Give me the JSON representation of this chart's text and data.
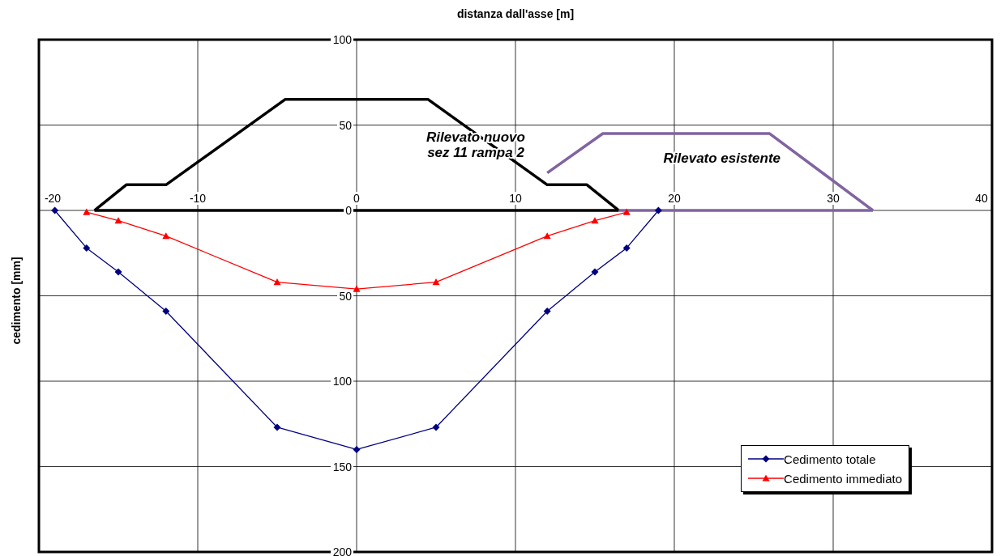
{
  "chart_data": {
    "type": "line",
    "xlabel": "distanza dall'asse [m]",
    "ylabel": "cedimento [mm]",
    "xlim": [
      -20,
      40
    ],
    "xticks": [
      -20,
      -10,
      0,
      10,
      20,
      30,
      40
    ],
    "ylim": [
      200,
      -100
    ],
    "yticks": [
      {
        "value": -100,
        "label": "100"
      },
      {
        "value": -50,
        "label": "50"
      },
      0,
      50,
      100,
      150,
      200
    ],
    "grid": true,
    "legend": "bottom right",
    "series": [
      {
        "name": "Cedimento totale",
        "color": "#000080",
        "marker": "diamond",
        "x": [
          -19,
          -17,
          -15,
          -12,
          -5,
          0,
          5,
          12,
          15,
          17,
          19
        ],
        "values": [
          0,
          22,
          36,
          59,
          127,
          140,
          127,
          59,
          36,
          22,
          0
        ]
      },
      {
        "name": "Cedimento immediato",
        "color": "#ff0000",
        "marker": "triangle",
        "x": [
          -17,
          -15,
          -12,
          -5,
          0,
          5,
          12,
          15,
          17
        ],
        "values": [
          1,
          6,
          15,
          42,
          46,
          42,
          15,
          6,
          1
        ]
      },
      {
        "color": "#000000",
        "marker": "none",
        "x": [
          -16.5,
          -14.5,
          -12,
          -4.5,
          4.5,
          12,
          14.5,
          16.5
        ],
        "values": [
          0,
          -15,
          -15,
          -65,
          -65,
          -15,
          -15,
          0
        ]
      },
      {
        "color": "#000000",
        "marker": "none",
        "x": [
          -16.5,
          16.5
        ],
        "values": [
          0,
          0
        ]
      },
      {
        "color": "#8064a2",
        "marker": "none",
        "x": [
          12,
          15.5,
          26,
          32.5
        ],
        "values": [
          -22,
          -45,
          -45,
          0
        ]
      },
      {
        "color": "#8064a2",
        "marker": "none",
        "x": [
          16.5,
          32.5
        ],
        "values": [
          0,
          0
        ]
      }
    ],
    "annotations": [
      "Rilevato nuovo\nsez 11 rampa 2",
      "Rilevato esistente"
    ]
  }
}
